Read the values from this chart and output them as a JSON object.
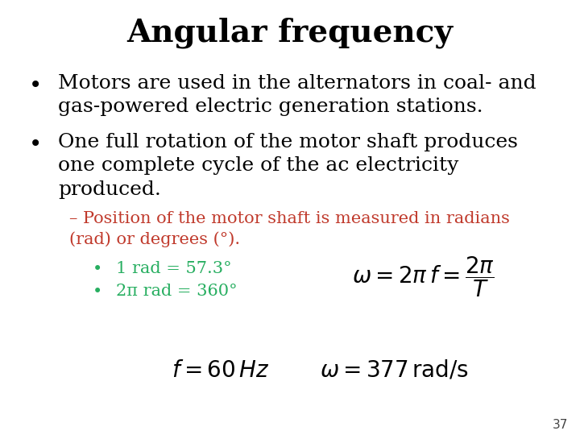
{
  "title": "Angular frequency",
  "background_color": "#ffffff",
  "title_fontsize": 28,
  "title_fontweight": "bold",
  "title_color": "#000000",
  "slide_number": "37",
  "bullet1_line1": "Motors are used in the alternators in coal- and",
  "bullet1_line2": "gas-powered electric generation stations.",
  "bullet2_line1": "One full rotation of the motor shaft produces",
  "bullet2_line2": "one complete cycle of the ac electricity",
  "bullet2_line3": "produced.",
  "subbullet_color": "#c0392b",
  "subbullet_line1": "– Position of the motor shaft is measured in radians",
  "subbullet_line2": "(rad) or degrees (°).",
  "sub_green_color": "#27ae60",
  "sub_bullet1": "1 rad = 57.3°",
  "sub_bullet2": "2π rad = 360°",
  "formula1": "$\\omega = 2\\pi\\, f = \\dfrac{2\\pi}{T}$",
  "formula2_left": "$f = 60\\,Hz$",
  "formula2_right": "$\\omega = 377\\,\\mathrm{rad/s}$",
  "bullet_fontsize": 18,
  "sub_fontsize": 15,
  "formula_fontsize": 20,
  "number_fontsize": 11,
  "number_color": "#444444"
}
